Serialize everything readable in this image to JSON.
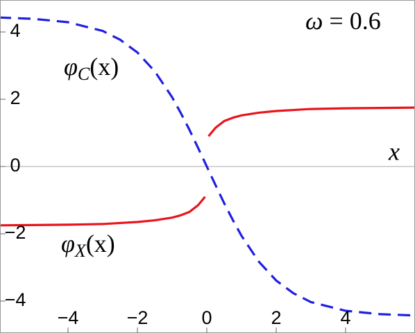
{
  "chart_data": {
    "type": "line",
    "x": [
      -6,
      -5,
      -4,
      -3,
      -2.5,
      -2,
      -1.5,
      -1,
      -0.75,
      -0.5,
      -0.25,
      -0.05,
      0,
      0.05,
      0.25,
      0.5,
      0.75,
      1,
      1.5,
      2,
      2.5,
      3,
      4,
      5,
      6
    ],
    "series": [
      {
        "name": "φC",
        "color": "#1f1fe0",
        "dashed": true,
        "values": [
          4.43,
          4.39,
          4.29,
          4.03,
          3.77,
          3.39,
          2.83,
          2.06,
          1.59,
          1.09,
          0.55,
          0.11,
          0,
          -0.11,
          -0.55,
          -1.09,
          -1.59,
          -2.06,
          -2.83,
          -3.39,
          -3.77,
          -4.03,
          -4.29,
          -4.39,
          -4.43
        ]
      },
      {
        "name": "φX",
        "color": "#e8141c",
        "dashed": false,
        "values": [
          -1.75,
          -1.74,
          -1.73,
          -1.71,
          -1.68,
          -1.65,
          -1.6,
          -1.52,
          -1.45,
          -1.35,
          -1.15,
          -0.9,
          null,
          0.9,
          1.15,
          1.35,
          1.45,
          1.52,
          1.6,
          1.65,
          1.68,
          1.71,
          1.73,
          1.74,
          1.75
        ]
      }
    ],
    "xlim": [
      -5.96,
      6
    ],
    "ylim": [
      -4.95,
      4.95
    ],
    "xticks": [
      {
        "value": -4,
        "label": "−4"
      },
      {
        "value": -2,
        "label": "−2"
      },
      0,
      2,
      4
    ],
    "yticks": [
      {
        "value": -4,
        "label": "−4"
      },
      {
        "value": -2,
        "label": "−2"
      },
      0,
      2,
      4
    ],
    "annotations": [
      {
        "parts": [
          "ω",
          " = 0.6"
        ]
      },
      {
        "parts": [
          "φ",
          "C",
          "(x)"
        ]
      },
      {
        "parts": [
          "φ",
          "X",
          "(x)"
        ]
      },
      {
        "parts": [
          "x"
        ]
      }
    ]
  }
}
